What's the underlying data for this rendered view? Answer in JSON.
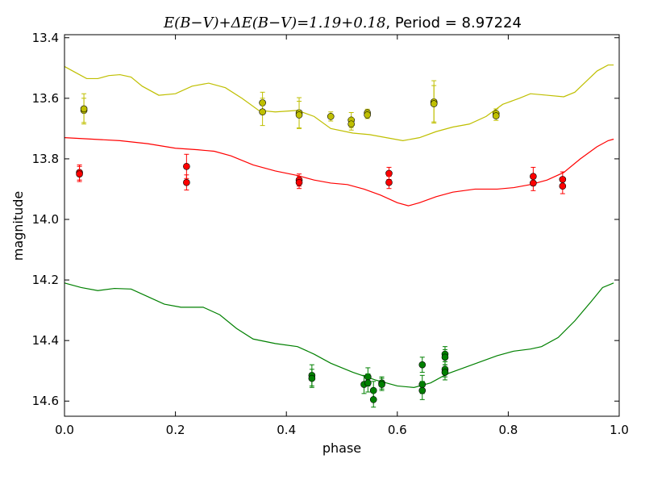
{
  "chart_data": {
    "type": "scatter",
    "title": "E(B−V)+ΔE(B−V)=1.19+0.18, Period = 8.97224",
    "title_parts": {
      "math": "E(B−V)+ΔE(B−V)=1.19+0.18",
      "text": ", Period = 8.97224"
    },
    "xlabel": "phase",
    "ylabel": "magnitude",
    "xlim": [
      0.0,
      1.0
    ],
    "ylim": [
      14.65,
      13.39
    ],
    "y_inverted": true,
    "xticks": [
      "0.0",
      "0.2",
      "0.4",
      "0.6",
      "0.8",
      "1.0"
    ],
    "yticks": [
      "13.4",
      "13.6",
      "13.8",
      "14.0",
      "14.2",
      "14.4",
      "14.6"
    ],
    "grid": false,
    "legend": "none",
    "series": [
      {
        "color": "#bfbf00",
        "curve": [
          [
            0.0,
            13.495
          ],
          [
            0.02,
            13.515
          ],
          [
            0.04,
            13.535
          ],
          [
            0.06,
            13.535
          ],
          [
            0.08,
            13.525
          ],
          [
            0.1,
            13.522
          ],
          [
            0.12,
            13.53
          ],
          [
            0.14,
            13.56
          ],
          [
            0.17,
            13.59
          ],
          [
            0.2,
            13.585
          ],
          [
            0.23,
            13.56
          ],
          [
            0.26,
            13.55
          ],
          [
            0.29,
            13.565
          ],
          [
            0.32,
            13.6
          ],
          [
            0.35,
            13.64
          ],
          [
            0.38,
            13.645
          ],
          [
            0.42,
            13.64
          ],
          [
            0.45,
            13.66
          ],
          [
            0.48,
            13.7
          ],
          [
            0.52,
            13.715
          ],
          [
            0.55,
            13.72
          ],
          [
            0.58,
            13.73
          ],
          [
            0.61,
            13.74
          ],
          [
            0.64,
            13.73
          ],
          [
            0.67,
            13.71
          ],
          [
            0.7,
            13.695
          ],
          [
            0.73,
            13.685
          ],
          [
            0.76,
            13.66
          ],
          [
            0.79,
            13.62
          ],
          [
            0.82,
            13.6
          ],
          [
            0.84,
            13.585
          ],
          [
            0.87,
            13.59
          ],
          [
            0.9,
            13.595
          ],
          [
            0.92,
            13.58
          ],
          [
            0.94,
            13.545
          ],
          [
            0.96,
            13.51
          ],
          [
            0.98,
            13.49
          ],
          [
            0.99,
            13.49
          ]
        ],
        "points": [
          {
            "x": 0.035,
            "y": 13.64,
            "err": 0.04
          },
          {
            "x": 0.035,
            "y": 13.635,
            "err": 0.05
          },
          {
            "x": 0.357,
            "y": 13.615,
            "err": 0.035
          },
          {
            "x": 0.357,
            "y": 13.645,
            "err": 0.045
          },
          {
            "x": 0.423,
            "y": 13.648,
            "err": 0.05
          },
          {
            "x": 0.423,
            "y": 13.655,
            "err": 0.045
          },
          {
            "x": 0.48,
            "y": 13.66,
            "err": 0.015
          },
          {
            "x": 0.517,
            "y": 13.672,
            "err": 0.025
          },
          {
            "x": 0.517,
            "y": 13.685,
            "err": 0.02
          },
          {
            "x": 0.546,
            "y": 13.648,
            "err": 0.012
          },
          {
            "x": 0.546,
            "y": 13.655,
            "err": 0.012
          },
          {
            "x": 0.666,
            "y": 13.612,
            "err": 0.07
          },
          {
            "x": 0.666,
            "y": 13.618,
            "err": 0.06
          },
          {
            "x": 0.778,
            "y": 13.65,
            "err": 0.015
          },
          {
            "x": 0.778,
            "y": 13.658,
            "err": 0.015
          }
        ]
      },
      {
        "color": "#ff0000",
        "curve": [
          [
            0.0,
            13.73
          ],
          [
            0.05,
            13.735
          ],
          [
            0.1,
            13.74
          ],
          [
            0.15,
            13.75
          ],
          [
            0.2,
            13.765
          ],
          [
            0.24,
            13.77
          ],
          [
            0.27,
            13.775
          ],
          [
            0.3,
            13.79
          ],
          [
            0.34,
            13.82
          ],
          [
            0.38,
            13.84
          ],
          [
            0.42,
            13.855
          ],
          [
            0.45,
            13.87
          ],
          [
            0.48,
            13.88
          ],
          [
            0.51,
            13.885
          ],
          [
            0.54,
            13.9
          ],
          [
            0.57,
            13.92
          ],
          [
            0.6,
            13.945
          ],
          [
            0.62,
            13.955
          ],
          [
            0.64,
            13.945
          ],
          [
            0.67,
            13.925
          ],
          [
            0.7,
            13.91
          ],
          [
            0.74,
            13.9
          ],
          [
            0.78,
            13.9
          ],
          [
            0.81,
            13.895
          ],
          [
            0.84,
            13.885
          ],
          [
            0.87,
            13.87
          ],
          [
            0.9,
            13.845
          ],
          [
            0.93,
            13.8
          ],
          [
            0.96,
            13.76
          ],
          [
            0.98,
            13.74
          ],
          [
            0.99,
            13.735
          ]
        ],
        "points": [
          {
            "x": 0.027,
            "y": 13.845,
            "err": 0.025
          },
          {
            "x": 0.027,
            "y": 13.85,
            "err": 0.025
          },
          {
            "x": 0.22,
            "y": 13.825,
            "err": 0.04
          },
          {
            "x": 0.22,
            "y": 13.878,
            "err": 0.025
          },
          {
            "x": 0.423,
            "y": 13.87,
            "err": 0.02
          },
          {
            "x": 0.423,
            "y": 13.878,
            "err": 0.02
          },
          {
            "x": 0.585,
            "y": 13.848,
            "err": 0.02
          },
          {
            "x": 0.585,
            "y": 13.878,
            "err": 0.02
          },
          {
            "x": 0.845,
            "y": 13.858,
            "err": 0.03
          },
          {
            "x": 0.845,
            "y": 13.88,
            "err": 0.025
          },
          {
            "x": 0.898,
            "y": 13.868,
            "err": 0.025
          },
          {
            "x": 0.898,
            "y": 13.89,
            "err": 0.025
          }
        ]
      },
      {
        "color": "#008000",
        "curve": [
          [
            0.0,
            14.21
          ],
          [
            0.03,
            14.225
          ],
          [
            0.06,
            14.235
          ],
          [
            0.09,
            14.228
          ],
          [
            0.12,
            14.23
          ],
          [
            0.15,
            14.255
          ],
          [
            0.18,
            14.28
          ],
          [
            0.21,
            14.29
          ],
          [
            0.25,
            14.29
          ],
          [
            0.28,
            14.315
          ],
          [
            0.31,
            14.36
          ],
          [
            0.34,
            14.395
          ],
          [
            0.38,
            14.41
          ],
          [
            0.42,
            14.42
          ],
          [
            0.45,
            14.445
          ],
          [
            0.48,
            14.475
          ],
          [
            0.52,
            14.505
          ],
          [
            0.56,
            14.53
          ],
          [
            0.6,
            14.55
          ],
          [
            0.63,
            14.555
          ],
          [
            0.66,
            14.54
          ],
          [
            0.69,
            14.51
          ],
          [
            0.72,
            14.49
          ],
          [
            0.75,
            14.47
          ],
          [
            0.78,
            14.45
          ],
          [
            0.81,
            14.435
          ],
          [
            0.84,
            14.428
          ],
          [
            0.86,
            14.42
          ],
          [
            0.89,
            14.39
          ],
          [
            0.92,
            14.335
          ],
          [
            0.95,
            14.27
          ],
          [
            0.97,
            14.225
          ],
          [
            0.99,
            14.21
          ]
        ],
        "points": [
          {
            "x": 0.446,
            "y": 14.515,
            "err": 0.035
          },
          {
            "x": 0.446,
            "y": 14.525,
            "err": 0.03
          },
          {
            "x": 0.54,
            "y": 14.545,
            "err": 0.03
          },
          {
            "x": 0.547,
            "y": 14.52,
            "err": 0.03
          },
          {
            "x": 0.547,
            "y": 14.54,
            "err": 0.03
          },
          {
            "x": 0.557,
            "y": 14.565,
            "err": 0.03
          },
          {
            "x": 0.557,
            "y": 14.595,
            "err": 0.025
          },
          {
            "x": 0.572,
            "y": 14.54,
            "err": 0.02
          },
          {
            "x": 0.572,
            "y": 14.545,
            "err": 0.02
          },
          {
            "x": 0.645,
            "y": 14.48,
            "err": 0.025
          },
          {
            "x": 0.645,
            "y": 14.545,
            "err": 0.03
          },
          {
            "x": 0.645,
            "y": 14.565,
            "err": 0.03
          },
          {
            "x": 0.686,
            "y": 14.445,
            "err": 0.025
          },
          {
            "x": 0.686,
            "y": 14.455,
            "err": 0.025
          },
          {
            "x": 0.686,
            "y": 14.495,
            "err": 0.025
          },
          {
            "x": 0.686,
            "y": 14.505,
            "err": 0.025
          }
        ]
      }
    ]
  }
}
